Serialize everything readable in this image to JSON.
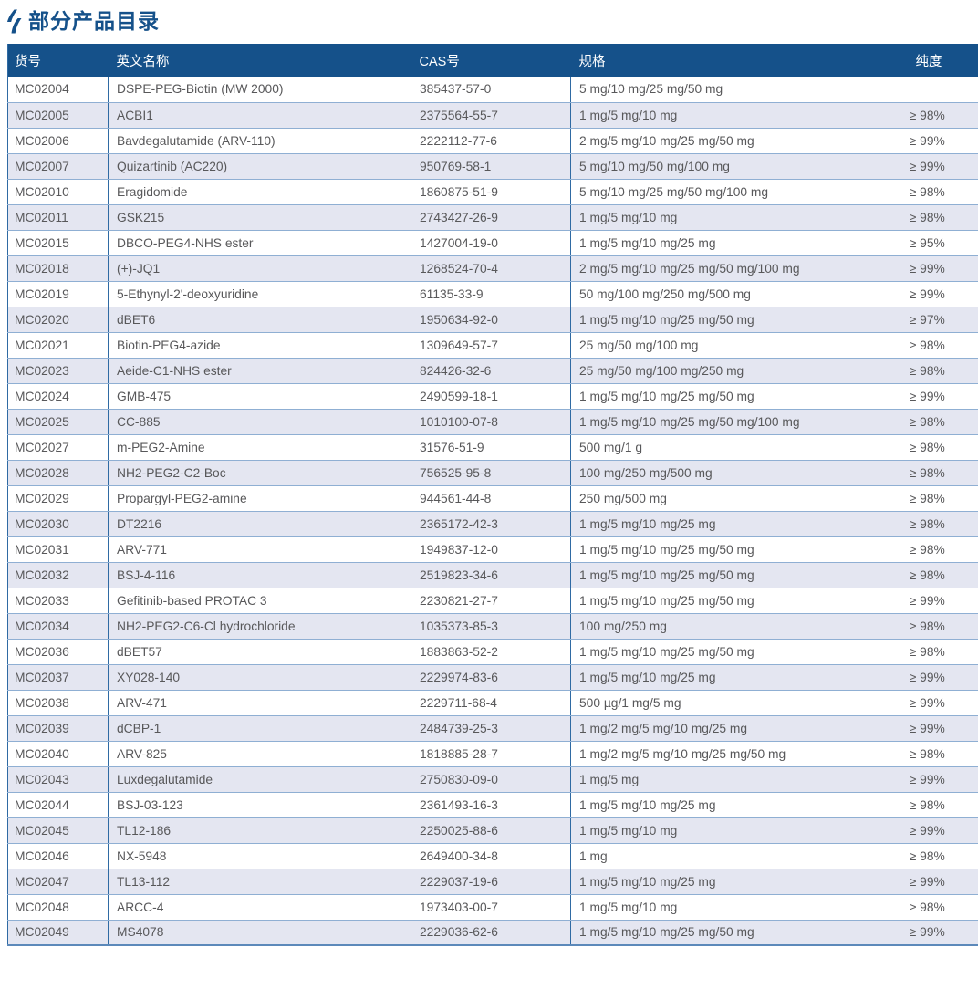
{
  "page": {
    "title": "部分产品目录"
  },
  "colors": {
    "title_text": "#15518a",
    "header_bg": "#15518a",
    "header_text": "#ffffff",
    "row_bg": "#ffffff",
    "row_alt_bg": "#e4e6f1",
    "vertical_border": "#2f6aa3",
    "horizontal_border": "#8fafd3",
    "cell_text": "#58585a"
  },
  "table": {
    "columns": [
      "货号",
      "英文名称",
      "CAS号",
      "规格",
      "纯度"
    ],
    "column_keys": [
      "code",
      "name",
      "cas",
      "spec",
      "purity"
    ],
    "column_names": [
      "item-no",
      "english-name",
      "cas",
      "spec",
      "purity"
    ],
    "rows": [
      {
        "code": "MC02004",
        "name": "DSPE-PEG-Biotin (MW 2000)",
        "cas": "385437-57-0",
        "spec": "5 mg/10 mg/25 mg/50 mg",
        "purity": ""
      },
      {
        "code": "MC02005",
        "name": "ACBI1",
        "cas": "2375564-55-7",
        "spec": "1 mg/5 mg/10 mg",
        "purity": "≥ 98%"
      },
      {
        "code": "MC02006",
        "name": "Bavdegalutamide (ARV-110)",
        "cas": "2222112-77-6",
        "spec": "2 mg/5 mg/10 mg/25 mg/50 mg",
        "purity": "≥ 99%"
      },
      {
        "code": "MC02007",
        "name": "Quizartinib (AC220)",
        "cas": "950769-58-1",
        "spec": "5 mg/10 mg/50 mg/100 mg",
        "purity": "≥ 99%"
      },
      {
        "code": "MC02010",
        "name": "Eragidomide",
        "cas": "1860875-51-9",
        "spec": "5 mg/10 mg/25 mg/50 mg/100 mg",
        "purity": "≥ 98%"
      },
      {
        "code": "MC02011",
        "name": "GSK215",
        "cas": "2743427-26-9",
        "spec": "1 mg/5 mg/10 mg",
        "purity": "≥ 98%"
      },
      {
        "code": "MC02015",
        "name": "DBCO-PEG4-NHS ester",
        "cas": "1427004-19-0",
        "spec": "1 mg/5 mg/10 mg/25 mg",
        "purity": "≥ 95%"
      },
      {
        "code": "MC02018",
        "name": "(+)-JQ1",
        "cas": "1268524-70-4",
        "spec": "2 mg/5 mg/10 mg/25 mg/50 mg/100 mg",
        "purity": "≥ 99%"
      },
      {
        "code": "MC02019",
        "name": "5-Ethynyl-2'-deoxyuridine",
        "cas": "61135-33-9",
        "spec": "50 mg/100 mg/250 mg/500 mg",
        "purity": "≥ 99%"
      },
      {
        "code": "MC02020",
        "name": "dBET6",
        "cas": "1950634-92-0",
        "spec": "1 mg/5 mg/10 mg/25 mg/50 mg",
        "purity": "≥ 97%"
      },
      {
        "code": "MC02021",
        "name": "Biotin-PEG4-azide",
        "cas": "1309649-57-7",
        "spec": "25 mg/50 mg/100 mg",
        "purity": "≥ 98%"
      },
      {
        "code": "MC02023",
        "name": "Aeide-C1-NHS ester",
        "cas": "824426-32-6",
        "spec": "25 mg/50 mg/100 mg/250 mg",
        "purity": "≥ 98%"
      },
      {
        "code": "MC02024",
        "name": "GMB-475",
        "cas": "2490599-18-1",
        "spec": "1 mg/5 mg/10 mg/25 mg/50 mg",
        "purity": "≥ 99%"
      },
      {
        "code": "MC02025",
        "name": "CC-885",
        "cas": "1010100-07-8",
        "spec": "1 mg/5 mg/10 mg/25 mg/50 mg/100 mg",
        "purity": "≥ 98%"
      },
      {
        "code": "MC02027",
        "name": "m-PEG2-Amine",
        "cas": "31576-51-9",
        "spec": "500 mg/1 g",
        "purity": "≥ 98%"
      },
      {
        "code": "MC02028",
        "name": "NH2-PEG2-C2-Boc",
        "cas": "756525-95-8",
        "spec": "100 mg/250 mg/500 mg",
        "purity": "≥ 98%"
      },
      {
        "code": "MC02029",
        "name": "Propargyl-PEG2-amine",
        "cas": "944561-44-8",
        "spec": "250 mg/500 mg",
        "purity": "≥ 98%"
      },
      {
        "code": "MC02030",
        "name": "DT2216",
        "cas": "2365172-42-3",
        "spec": "1 mg/5 mg/10 mg/25 mg",
        "purity": "≥ 98%"
      },
      {
        "code": "MC02031",
        "name": "ARV-771",
        "cas": "1949837-12-0",
        "spec": "1 mg/5 mg/10 mg/25 mg/50 mg",
        "purity": "≥ 98%"
      },
      {
        "code": "MC02032",
        "name": "BSJ-4-116",
        "cas": "2519823-34-6",
        "spec": "1 mg/5 mg/10 mg/25 mg/50 mg",
        "purity": "≥ 98%"
      },
      {
        "code": "MC02033",
        "name": "Gefitinib-based PROTAC 3",
        "cas": "2230821-27-7",
        "spec": "1 mg/5 mg/10 mg/25 mg/50 mg",
        "purity": "≥ 99%"
      },
      {
        "code": "MC02034",
        "name": "NH2-PEG2-C6-Cl hydrochloride",
        "cas": "1035373-85-3",
        "spec": "100 mg/250 mg",
        "purity": "≥ 98%"
      },
      {
        "code": "MC02036",
        "name": "dBET57",
        "cas": "1883863-52-2",
        "spec": "1 mg/5 mg/10 mg/25 mg/50 mg",
        "purity": "≥ 98%"
      },
      {
        "code": "MC02037",
        "name": "XY028-140",
        "cas": "2229974-83-6",
        "spec": "1 mg/5 mg/10 mg/25 mg",
        "purity": "≥ 99%"
      },
      {
        "code": "MC02038",
        "name": "ARV-471",
        "cas": "2229711-68-4",
        "spec": "500 µg/1 mg/5 mg",
        "purity": "≥ 99%"
      },
      {
        "code": "MC02039",
        "name": "dCBP-1",
        "cas": "2484739-25-3",
        "spec": "1 mg/2 mg/5 mg/10 mg/25 mg",
        "purity": "≥ 99%"
      },
      {
        "code": "MC02040",
        "name": "ARV-825",
        "cas": "1818885-28-7",
        "spec": "1 mg/2 mg/5 mg/10 mg/25 mg/50 mg",
        "purity": "≥ 98%"
      },
      {
        "code": "MC02043",
        "name": "Luxdegalutamide",
        "cas": "2750830-09-0",
        "spec": "1 mg/5 mg",
        "purity": "≥ 99%"
      },
      {
        "code": "MC02044",
        "name": "BSJ-03-123",
        "cas": "2361493-16-3",
        "spec": "1 mg/5 mg/10 mg/25 mg",
        "purity": "≥ 98%"
      },
      {
        "code": "MC02045",
        "name": "TL12-186",
        "cas": "2250025-88-6",
        "spec": "1 mg/5 mg/10 mg",
        "purity": "≥ 99%"
      },
      {
        "code": "MC02046",
        "name": "NX-5948",
        "cas": "2649400-34-8",
        "spec": "1 mg",
        "purity": "≥ 98%"
      },
      {
        "code": "MC02047",
        "name": "TL13-112",
        "cas": "2229037-19-6",
        "spec": "1 mg/5 mg/10 mg/25 mg",
        "purity": "≥ 99%"
      },
      {
        "code": "MC02048",
        "name": "ARCC-4",
        "cas": "1973403-00-7",
        "spec": "1 mg/5 mg/10 mg",
        "purity": "≥ 98%"
      },
      {
        "code": "MC02049",
        "name": "MS4078",
        "cas": "2229036-62-6",
        "spec": "1 mg/5 mg/10 mg/25 mg/50 mg",
        "purity": "≥ 99%"
      }
    ]
  }
}
